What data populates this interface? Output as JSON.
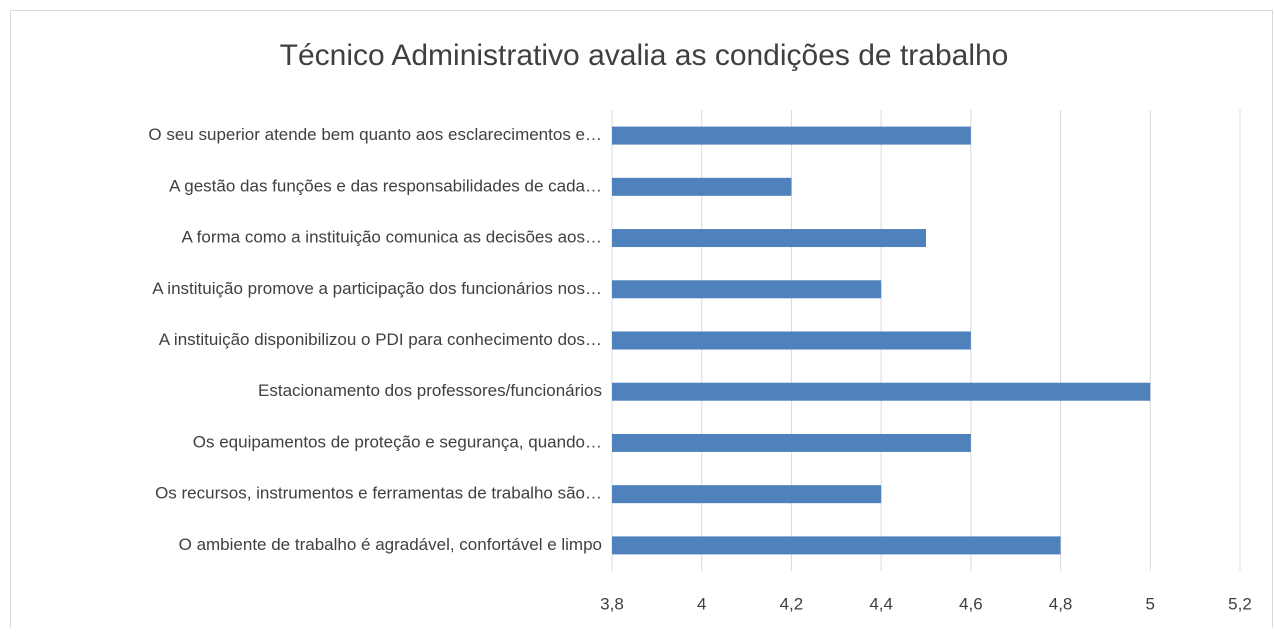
{
  "chart_data": {
    "type": "bar",
    "orientation": "horizontal",
    "title": "Técnico Administrativo avalia as condições de trabalho",
    "categories": [
      "O seu superior atende bem quanto aos esclarecimentos e…",
      "A gestão das funções e das responsabilidades de cada…",
      "A forma como a instituição comunica as decisões aos…",
      "A instituição promove a participação dos funcionários nos…",
      "A instituição disponibilizou o PDI para conhecimento dos…",
      "Estacionamento dos professores/funcionários",
      "Os equipamentos de proteção e segurança, quando…",
      "Os recursos, instrumentos e ferramentas de trabalho são…",
      "O ambiente de trabalho é agradável, confortável e limpo"
    ],
    "values": [
      4.6,
      4.2,
      4.5,
      4.4,
      4.6,
      5,
      4.6,
      4.4,
      4.8
    ],
    "color": "#4f81bd",
    "xlim": [
      3.8,
      5.2
    ],
    "xticks": [
      {
        "value": 3.8,
        "label": "3,8"
      },
      4,
      {
        "value": 4.2,
        "label": "4,2"
      },
      {
        "value": 4.4,
        "label": "4,4"
      },
      {
        "value": 4.6,
        "label": "4,6"
      },
      {
        "value": 4.8,
        "label": "4,8"
      },
      5,
      {
        "value": 5.2,
        "label": "5,2"
      }
    ],
    "grid": true
  }
}
